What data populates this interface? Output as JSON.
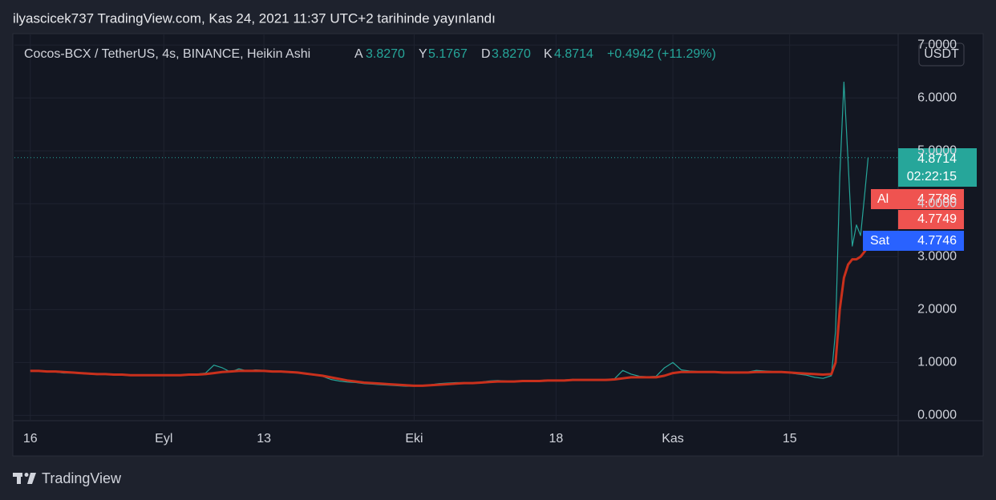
{
  "header": {
    "title": "ilyascicek737 TradingView.com, Kas 24, 2021 11:37 UTC+2 tarihinde yayınlandı"
  },
  "legend": {
    "symbol": "Cocos-BCX / TetherUS, 4s, BINANCE, Heikin Ashi",
    "open_key": "A",
    "open": "3.8270",
    "high_key": "Y",
    "high": "5.1767",
    "low_key": "D",
    "low": "3.8270",
    "close_key": "K",
    "close": "4.8714",
    "change": "+0.4942 (+11.29%)"
  },
  "currency": "USDT",
  "price_labels": {
    "last": 4.8714,
    "countdown": "02:22:15",
    "buy_key": "Al",
    "buy": 4.7786,
    "mid": 4.7749,
    "sell_key": "Sat",
    "sell": 4.7746
  },
  "footer": {
    "brand": "TradingView"
  },
  "chart_data": {
    "type": "line",
    "grid": true,
    "x": [
      0,
      1,
      2,
      3,
      4,
      5,
      6,
      7,
      8,
      9,
      10,
      11,
      12,
      13,
      14,
      15,
      16,
      17,
      18,
      19,
      20,
      21,
      22,
      23,
      24,
      25,
      26,
      27,
      28,
      29,
      30,
      31,
      32,
      33,
      34,
      35,
      36,
      37,
      38,
      39,
      40,
      41,
      42,
      43,
      44,
      45,
      46,
      47,
      48,
      49,
      50,
      51,
      52,
      53,
      54,
      55,
      56,
      57,
      58,
      59,
      60,
      61,
      62,
      63,
      64,
      65,
      66,
      67,
      68,
      69,
      70,
      71,
      72,
      73,
      74,
      75,
      76,
      77,
      78,
      79,
      80,
      81,
      82,
      83,
      84,
      85,
      86,
      87,
      88,
      89,
      90,
      91,
      92,
      93,
      94,
      95,
      96,
      96.5,
      97,
      97.5,
      98,
      98.5,
      99,
      99.5,
      100,
      100.4
    ],
    "xlim": [
      -1.9,
      104.0
    ],
    "xticks": [
      {
        "value": 0,
        "label": "16"
      },
      {
        "value": 16,
        "label": "Eyl"
      },
      {
        "value": 28,
        "label": "13"
      },
      {
        "value": 46,
        "label": "Eki"
      },
      {
        "value": 63,
        "label": "18"
      },
      {
        "value": 77,
        "label": "Kas"
      },
      {
        "value": 91,
        "label": "15"
      }
    ],
    "ylim": [
      -0.1,
      7.2
    ],
    "yticks": [
      {
        "value": 0,
        "label": "0.0000"
      },
      {
        "value": 1,
        "label": "1.0000"
      },
      {
        "value": 2,
        "label": "2.0000"
      },
      {
        "value": 3,
        "label": "3.0000"
      },
      {
        "value": 4,
        "label": "4.0000"
      },
      {
        "value": 5,
        "label": "5.0000"
      },
      {
        "value": 6,
        "label": "6.0000"
      },
      {
        "value": 7,
        "label": "7.0000"
      }
    ],
    "series": [
      {
        "color": "#26a69a",
        "values": [
          0.85,
          0.84,
          0.83,
          0.82,
          0.8,
          0.8,
          0.79,
          0.78,
          0.77,
          0.78,
          0.76,
          0.77,
          0.76,
          0.75,
          0.76,
          0.75,
          0.76,
          0.77,
          0.76,
          0.77,
          0.78,
          0.8,
          0.95,
          0.9,
          0.82,
          0.88,
          0.84,
          0.86,
          0.85,
          0.83,
          0.82,
          0.81,
          0.8,
          0.78,
          0.76,
          0.74,
          0.68,
          0.65,
          0.63,
          0.62,
          0.6,
          0.59,
          0.58,
          0.57,
          0.56,
          0.55,
          0.55,
          0.56,
          0.58,
          0.6,
          0.61,
          0.62,
          0.62,
          0.61,
          0.63,
          0.65,
          0.66,
          0.65,
          0.64,
          0.65,
          0.66,
          0.66,
          0.67,
          0.66,
          0.67,
          0.68,
          0.67,
          0.66,
          0.67,
          0.68,
          0.69,
          0.85,
          0.78,
          0.74,
          0.73,
          0.74,
          0.9,
          1.0,
          0.86,
          0.84,
          0.83,
          0.82,
          0.82,
          0.81,
          0.8,
          0.8,
          0.82,
          0.85,
          0.84,
          0.83,
          0.82,
          0.8,
          0.78,
          0.76,
          0.72,
          0.7,
          0.75,
          1.6,
          4.5,
          6.3,
          4.8,
          3.2,
          3.6,
          3.4,
          4.2,
          4.87
        ]
      },
      {
        "color": "#c9301c",
        "values": [
          0.84,
          0.84,
          0.83,
          0.83,
          0.82,
          0.81,
          0.8,
          0.79,
          0.78,
          0.78,
          0.77,
          0.77,
          0.76,
          0.76,
          0.76,
          0.76,
          0.76,
          0.76,
          0.76,
          0.77,
          0.77,
          0.78,
          0.8,
          0.82,
          0.83,
          0.84,
          0.84,
          0.84,
          0.84,
          0.83,
          0.83,
          0.82,
          0.81,
          0.79,
          0.77,
          0.75,
          0.72,
          0.69,
          0.66,
          0.64,
          0.62,
          0.61,
          0.6,
          0.59,
          0.58,
          0.57,
          0.56,
          0.56,
          0.57,
          0.58,
          0.59,
          0.6,
          0.61,
          0.61,
          0.62,
          0.63,
          0.64,
          0.64,
          0.64,
          0.65,
          0.65,
          0.65,
          0.66,
          0.66,
          0.66,
          0.67,
          0.67,
          0.67,
          0.67,
          0.67,
          0.68,
          0.7,
          0.72,
          0.72,
          0.72,
          0.72,
          0.75,
          0.8,
          0.82,
          0.82,
          0.82,
          0.82,
          0.82,
          0.81,
          0.81,
          0.81,
          0.81,
          0.82,
          0.82,
          0.82,
          0.82,
          0.81,
          0.8,
          0.79,
          0.78,
          0.77,
          0.78,
          1.0,
          2.0,
          2.6,
          2.85,
          2.95,
          2.95,
          3.0,
          3.1,
          3.2
        ]
      }
    ]
  }
}
